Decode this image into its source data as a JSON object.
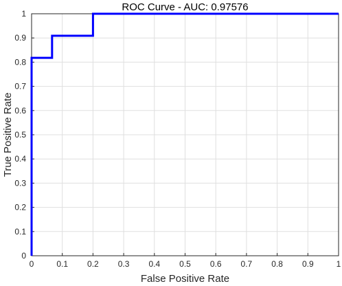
{
  "chart_data": {
    "type": "line",
    "title": "ROC Curve - AUC: 0.97576",
    "xlabel": "False Positive Rate",
    "ylabel": "True Positive Rate",
    "xlim": [
      0,
      1
    ],
    "ylim": [
      0,
      1
    ],
    "grid": true,
    "x_ticks": [
      "0",
      "0.1",
      "0.2",
      "0.3",
      "0.4",
      "0.5",
      "0.6",
      "0.7",
      "0.8",
      "0.9",
      "1"
    ],
    "y_ticks": [
      "0",
      "0.1",
      "0.2",
      "0.3",
      "0.4",
      "0.5",
      "0.6",
      "0.7",
      "0.8",
      "0.9",
      "1"
    ],
    "series": [
      {
        "x": [
          0,
          0,
          0.0667,
          0.0667,
          0.2,
          0.2,
          1
        ],
        "y": [
          0,
          0.818,
          0.818,
          0.909,
          0.909,
          1,
          1
        ],
        "color": "#0000ff"
      }
    ]
  }
}
